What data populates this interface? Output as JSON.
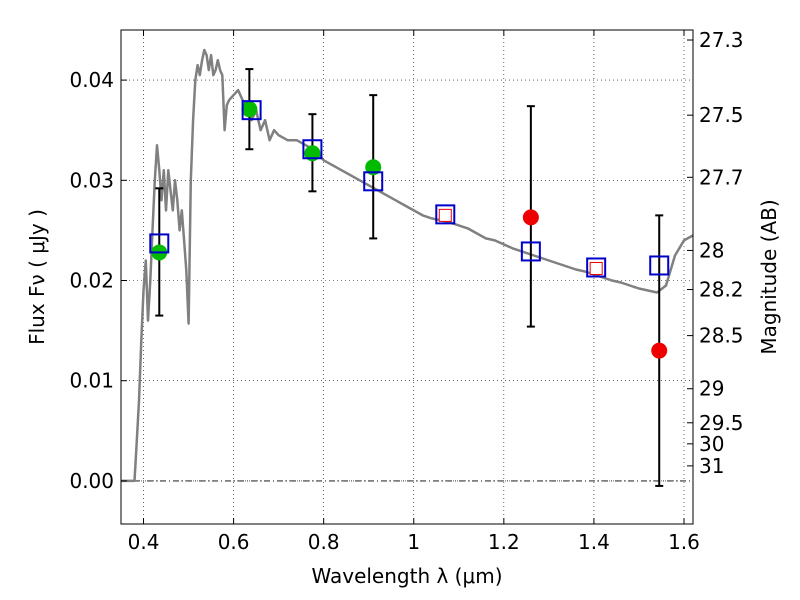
{
  "chart_data": {
    "type": "scatter",
    "xlabel": "Wavelength  λ (μm)",
    "ylabel": "Flux  Fν  ( μJy )",
    "ylabel_right": "Magnitude (AB)",
    "xlim": [
      0.35,
      1.62
    ],
    "ylim": [
      -0.0043,
      0.045
    ],
    "grid": true,
    "x_ticks": [
      0.4,
      0.6,
      0.8,
      1.0,
      1.2,
      1.4,
      1.6
    ],
    "x_tick_labels": [
      "0.4",
      "0.6",
      "0.8",
      "1",
      "1.2",
      "1.4",
      "1.6"
    ],
    "y_ticks": [
      0.0,
      0.01,
      0.02,
      0.03,
      0.04
    ],
    "y_tick_labels": [
      "0.00",
      "0.01",
      "0.02",
      "0.03",
      "0.04"
    ],
    "mag_ticks": [
      {
        "label": "27.3",
        "flux": 0.044
      },
      {
        "label": "27.5",
        "flux": 0.0365
      },
      {
        "label": "27.7",
        "flux": 0.0303
      },
      {
        "label": "28",
        "flux": 0.023
      },
      {
        "label": "28.2",
        "flux": 0.0191
      },
      {
        "label": "28.5",
        "flux": 0.0145
      },
      {
        "label": "29",
        "flux": 0.0092
      },
      {
        "label": "29.5",
        "flux": 0.0058
      },
      {
        "label": "30",
        "flux": 0.0037
      },
      {
        "label": "31",
        "flux": 0.0015
      }
    ],
    "series": [
      {
        "type": "line",
        "color": "#808080",
        "points": [
          [
            0.35,
            0.0
          ],
          [
            0.37,
            0.0
          ],
          [
            0.38,
            0.0
          ],
          [
            0.385,
            0.004
          ],
          [
            0.39,
            0.008
          ],
          [
            0.395,
            0.014
          ],
          [
            0.4,
            0.019
          ],
          [
            0.405,
            0.022
          ],
          [
            0.41,
            0.016
          ],
          [
            0.415,
            0.02
          ],
          [
            0.42,
            0.025
          ],
          [
            0.425,
            0.03
          ],
          [
            0.43,
            0.0335
          ],
          [
            0.435,
            0.031
          ],
          [
            0.44,
            0.028
          ],
          [
            0.445,
            0.031
          ],
          [
            0.45,
            0.027
          ],
          [
            0.455,
            0.031
          ],
          [
            0.46,
            0.029
          ],
          [
            0.465,
            0.027
          ],
          [
            0.47,
            0.03
          ],
          [
            0.475,
            0.028
          ],
          [
            0.48,
            0.025
          ],
          [
            0.485,
            0.027
          ],
          [
            0.49,
            0.024
          ],
          [
            0.495,
            0.021
          ],
          [
            0.5,
            0.0157
          ],
          [
            0.505,
            0.03
          ],
          [
            0.51,
            0.036
          ],
          [
            0.515,
            0.04
          ],
          [
            0.52,
            0.0415
          ],
          [
            0.525,
            0.0405
          ],
          [
            0.53,
            0.042
          ],
          [
            0.535,
            0.043
          ],
          [
            0.54,
            0.0425
          ],
          [
            0.545,
            0.041
          ],
          [
            0.55,
            0.0425
          ],
          [
            0.555,
            0.0405
          ],
          [
            0.56,
            0.041
          ],
          [
            0.565,
            0.042
          ],
          [
            0.57,
            0.041
          ],
          [
            0.575,
            0.0405
          ],
          [
            0.58,
            0.035
          ],
          [
            0.585,
            0.0375
          ],
          [
            0.59,
            0.038
          ],
          [
            0.6,
            0.0385
          ],
          [
            0.61,
            0.039
          ],
          [
            0.62,
            0.038
          ],
          [
            0.63,
            0.0375
          ],
          [
            0.64,
            0.036
          ],
          [
            0.65,
            0.037
          ],
          [
            0.66,
            0.035
          ],
          [
            0.67,
            0.036
          ],
          [
            0.68,
            0.034
          ],
          [
            0.69,
            0.035
          ],
          [
            0.7,
            0.0345
          ],
          [
            0.72,
            0.034
          ],
          [
            0.74,
            0.034
          ],
          [
            0.76,
            0.0335
          ],
          [
            0.78,
            0.033
          ],
          [
            0.8,
            0.032
          ],
          [
            0.82,
            0.0315
          ],
          [
            0.84,
            0.031
          ],
          [
            0.86,
            0.0305
          ],
          [
            0.88,
            0.03
          ],
          [
            0.9,
            0.0295
          ],
          [
            0.92,
            0.029
          ],
          [
            0.94,
            0.0285
          ],
          [
            0.96,
            0.028
          ],
          [
            0.98,
            0.0275
          ],
          [
            1.0,
            0.027
          ],
          [
            1.02,
            0.0265
          ],
          [
            1.04,
            0.0262
          ],
          [
            1.06,
            0.026
          ],
          [
            1.08,
            0.0258
          ],
          [
            1.1,
            0.0255
          ],
          [
            1.12,
            0.0252
          ],
          [
            1.14,
            0.0247
          ],
          [
            1.16,
            0.0242
          ],
          [
            1.18,
            0.024
          ],
          [
            1.2,
            0.0236
          ],
          [
            1.22,
            0.0232
          ],
          [
            1.24,
            0.0229
          ],
          [
            1.26,
            0.0226
          ],
          [
            1.28,
            0.0223
          ],
          [
            1.3,
            0.022
          ],
          [
            1.32,
            0.0217
          ],
          [
            1.34,
            0.0214
          ],
          [
            1.36,
            0.0211
          ],
          [
            1.38,
            0.0209
          ],
          [
            1.4,
            0.0206
          ],
          [
            1.42,
            0.0203
          ],
          [
            1.44,
            0.02
          ],
          [
            1.46,
            0.0198
          ],
          [
            1.48,
            0.0195
          ],
          [
            1.5,
            0.0192
          ],
          [
            1.52,
            0.019
          ],
          [
            1.54,
            0.0188
          ],
          [
            1.56,
            0.0195
          ],
          [
            1.58,
            0.0225
          ],
          [
            1.6,
            0.024
          ],
          [
            1.62,
            0.0245
          ]
        ]
      },
      {
        "type": "errorbar",
        "color": "#000000",
        "points": [
          {
            "x": 0.435,
            "y": 0.0228,
            "ylow": 0.0165,
            "yhigh": 0.0292
          },
          {
            "x": 0.635,
            "y": 0.0371,
            "ylow": 0.0331,
            "yhigh": 0.0411
          },
          {
            "x": 0.775,
            "y": 0.0327,
            "ylow": 0.0289,
            "yhigh": 0.0366
          },
          {
            "x": 0.91,
            "y": 0.0313,
            "ylow": 0.0242,
            "yhigh": 0.0385
          },
          {
            "x": 1.26,
            "y": 0.0263,
            "ylow": 0.0154,
            "yhigh": 0.0374
          },
          {
            "x": 1.545,
            "y": 0.013,
            "ylow": -0.0005,
            "yhigh": 0.0265
          }
        ]
      },
      {
        "type": "scatter",
        "marker": "circle",
        "color": "#00bb00",
        "points": [
          [
            0.435,
            0.0228
          ],
          [
            0.635,
            0.0371
          ],
          [
            0.775,
            0.0327
          ],
          [
            0.91,
            0.0313
          ]
        ]
      },
      {
        "type": "scatter",
        "marker": "circle",
        "color": "#ee0000",
        "points": [
          [
            1.26,
            0.0263
          ],
          [
            1.545,
            0.013
          ]
        ]
      },
      {
        "type": "scatter",
        "marker": "small-square",
        "color": "#ee0000",
        "points": [
          [
            1.07,
            0.0265
          ],
          [
            1.405,
            0.0212
          ]
        ]
      },
      {
        "type": "scatter",
        "marker": "open-square",
        "color": "#0000cc",
        "points": [
          [
            0.435,
            0.0237
          ],
          [
            0.64,
            0.037
          ],
          [
            0.775,
            0.0331
          ],
          [
            0.91,
            0.0299
          ],
          [
            1.07,
            0.0266
          ],
          [
            1.26,
            0.0229
          ],
          [
            1.405,
            0.0213
          ],
          [
            1.545,
            0.0215
          ]
        ]
      }
    ]
  }
}
